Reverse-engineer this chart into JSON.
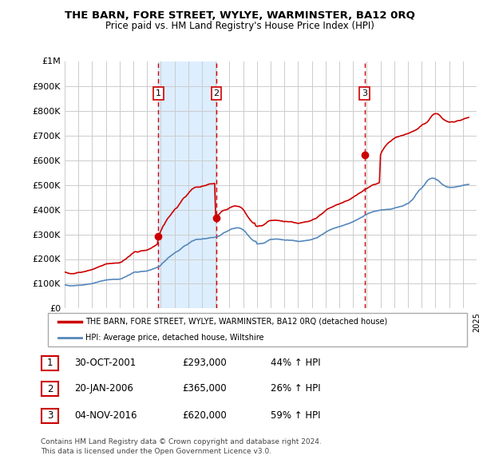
{
  "title": "THE BARN, FORE STREET, WYLYE, WARMINSTER, BA12 0RQ",
  "subtitle": "Price paid vs. HM Land Registry's House Price Index (HPI)",
  "ylim": [
    0,
    1000000
  ],
  "ytop_label": "£1M",
  "sale_dates": [
    2001.83,
    2006.05,
    2016.84
  ],
  "sale_prices": [
    293000,
    365000,
    620000
  ],
  "sale_labels": [
    "1",
    "2",
    "3"
  ],
  "legend_line1": "THE BARN, FORE STREET, WYLYE, WARMINSTER, BA12 0RQ (detached house)",
  "legend_line2": "HPI: Average price, detached house, Wiltshire",
  "table_rows": [
    [
      "1",
      "30-OCT-2001",
      "£293,000",
      "44% ↑ HPI"
    ],
    [
      "2",
      "20-JAN-2006",
      "£365,000",
      "26% ↑ HPI"
    ],
    [
      "3",
      "04-NOV-2016",
      "£620,000",
      "59% ↑ HPI"
    ]
  ],
  "footnote1": "Contains HM Land Registry data © Crown copyright and database right 2024.",
  "footnote2": "This data is licensed under the Open Government Licence v3.0.",
  "property_line_color": "#cc0000",
  "hpi_line_color": "#5588bb",
  "sale_marker_color": "#cc0000",
  "dashed_line_color": "#cc0000",
  "grid_color": "#cccccc",
  "shade_color": "#ddeeff",
  "hpi_data_years": [
    1995.0,
    1995.08,
    1995.17,
    1995.25,
    1995.33,
    1995.42,
    1995.5,
    1995.58,
    1995.67,
    1995.75,
    1995.83,
    1995.92,
    1996.0,
    1996.08,
    1996.17,
    1996.25,
    1996.33,
    1996.42,
    1996.5,
    1996.58,
    1996.67,
    1996.75,
    1996.83,
    1996.92,
    1997.0,
    1997.08,
    1997.17,
    1997.25,
    1997.33,
    1997.42,
    1997.5,
    1997.58,
    1997.67,
    1997.75,
    1997.83,
    1997.92,
    1998.0,
    1998.08,
    1998.17,
    1998.25,
    1998.33,
    1998.42,
    1998.5,
    1998.58,
    1998.67,
    1998.75,
    1998.83,
    1998.92,
    1999.0,
    1999.08,
    1999.17,
    1999.25,
    1999.33,
    1999.42,
    1999.5,
    1999.58,
    1999.67,
    1999.75,
    1999.83,
    1999.92,
    2000.0,
    2000.08,
    2000.17,
    2000.25,
    2000.33,
    2000.42,
    2000.5,
    2000.58,
    2000.67,
    2000.75,
    2000.83,
    2000.92,
    2001.0,
    2001.08,
    2001.17,
    2001.25,
    2001.33,
    2001.42,
    2001.5,
    2001.58,
    2001.67,
    2001.75,
    2001.83,
    2001.92,
    2002.0,
    2002.08,
    2002.17,
    2002.25,
    2002.33,
    2002.42,
    2002.5,
    2002.58,
    2002.67,
    2002.75,
    2002.83,
    2002.92,
    2003.0,
    2003.08,
    2003.17,
    2003.25,
    2003.33,
    2003.42,
    2003.5,
    2003.58,
    2003.67,
    2003.75,
    2003.83,
    2003.92,
    2004.0,
    2004.08,
    2004.17,
    2004.25,
    2004.33,
    2004.42,
    2004.5,
    2004.58,
    2004.67,
    2004.75,
    2004.83,
    2004.92,
    2005.0,
    2005.08,
    2005.17,
    2005.25,
    2005.33,
    2005.42,
    2005.5,
    2005.58,
    2005.67,
    2005.75,
    2005.83,
    2005.92,
    2006.0,
    2006.08,
    2006.17,
    2006.25,
    2006.33,
    2006.42,
    2006.5,
    2006.58,
    2006.67,
    2006.75,
    2006.83,
    2006.92,
    2007.0,
    2007.08,
    2007.17,
    2007.25,
    2007.33,
    2007.42,
    2007.5,
    2007.58,
    2007.67,
    2007.75,
    2007.83,
    2007.92,
    2008.0,
    2008.08,
    2008.17,
    2008.25,
    2008.33,
    2008.42,
    2008.5,
    2008.58,
    2008.67,
    2008.75,
    2008.83,
    2008.92,
    2009.0,
    2009.08,
    2009.17,
    2009.25,
    2009.33,
    2009.42,
    2009.5,
    2009.58,
    2009.67,
    2009.75,
    2009.83,
    2009.92,
    2010.0,
    2010.08,
    2010.17,
    2010.25,
    2010.33,
    2010.42,
    2010.5,
    2010.58,
    2010.67,
    2010.75,
    2010.83,
    2010.92,
    2011.0,
    2011.08,
    2011.17,
    2011.25,
    2011.33,
    2011.42,
    2011.5,
    2011.58,
    2011.67,
    2011.75,
    2011.83,
    2011.92,
    2012.0,
    2012.08,
    2012.17,
    2012.25,
    2012.33,
    2012.42,
    2012.5,
    2012.58,
    2012.67,
    2012.75,
    2012.83,
    2012.92,
    2013.0,
    2013.08,
    2013.17,
    2013.25,
    2013.33,
    2013.42,
    2013.5,
    2013.58,
    2013.67,
    2013.75,
    2013.83,
    2013.92,
    2014.0,
    2014.08,
    2014.17,
    2014.25,
    2014.33,
    2014.42,
    2014.5,
    2014.58,
    2014.67,
    2014.75,
    2014.83,
    2014.92,
    2015.0,
    2015.08,
    2015.17,
    2015.25,
    2015.33,
    2015.42,
    2015.5,
    2015.58,
    2015.67,
    2015.75,
    2015.83,
    2015.92,
    2016.0,
    2016.08,
    2016.17,
    2016.25,
    2016.33,
    2016.42,
    2016.5,
    2016.58,
    2016.67,
    2016.75,
    2016.83,
    2016.92,
    2017.0,
    2017.08,
    2017.17,
    2017.25,
    2017.33,
    2017.42,
    2017.5,
    2017.58,
    2017.67,
    2017.75,
    2017.83,
    2017.92,
    2018.0,
    2018.08,
    2018.17,
    2018.25,
    2018.33,
    2018.42,
    2018.5,
    2018.58,
    2018.67,
    2018.75,
    2018.83,
    2018.92,
    2019.0,
    2019.08,
    2019.17,
    2019.25,
    2019.33,
    2019.42,
    2019.5,
    2019.58,
    2019.67,
    2019.75,
    2019.83,
    2019.92,
    2020.0,
    2020.08,
    2020.17,
    2020.25,
    2020.33,
    2020.42,
    2020.5,
    2020.58,
    2020.67,
    2020.75,
    2020.83,
    2020.92,
    2021.0,
    2021.08,
    2021.17,
    2021.25,
    2021.33,
    2021.42,
    2021.5,
    2021.58,
    2021.67,
    2021.75,
    2021.83,
    2021.92,
    2022.0,
    2022.08,
    2022.17,
    2022.25,
    2022.33,
    2022.42,
    2022.5,
    2022.58,
    2022.67,
    2022.75,
    2022.83,
    2022.92,
    2023.0,
    2023.08,
    2023.17,
    2023.25,
    2023.33,
    2023.42,
    2023.5,
    2023.58,
    2023.67,
    2023.75,
    2023.83,
    2023.92,
    2024.0,
    2024.08,
    2024.17,
    2024.25,
    2024.33,
    2024.42
  ],
  "hpi_data_values": [
    96000,
    95000,
    94000,
    93000,
    92000,
    92000,
    92000,
    92000,
    92000,
    93000,
    93000,
    94000,
    94000,
    94000,
    94000,
    95000,
    95000,
    96000,
    97000,
    97000,
    98000,
    99000,
    99000,
    100000,
    101000,
    102000,
    103000,
    105000,
    106000,
    107000,
    109000,
    110000,
    111000,
    112000,
    113000,
    114000,
    115000,
    116000,
    116000,
    117000,
    117000,
    117000,
    118000,
    118000,
    118000,
    118000,
    118000,
    118000,
    119000,
    120000,
    121000,
    124000,
    126000,
    128000,
    130000,
    133000,
    135000,
    137000,
    140000,
    143000,
    145000,
    147000,
    148000,
    147000,
    147000,
    148000,
    149000,
    150000,
    150000,
    150000,
    151000,
    151000,
    152000,
    153000,
    155000,
    156000,
    158000,
    160000,
    161000,
    163000,
    165000,
    167000,
    168000,
    171000,
    175000,
    180000,
    186000,
    189000,
    193000,
    198000,
    203000,
    207000,
    210000,
    214000,
    217000,
    221000,
    224000,
    228000,
    230000,
    232000,
    235000,
    239000,
    243000,
    247000,
    251000,
    254000,
    256000,
    258000,
    262000,
    265000,
    268000,
    272000,
    274000,
    275000,
    278000,
    279000,
    280000,
    280000,
    280000,
    280000,
    281000,
    282000,
    282000,
    283000,
    283000,
    284000,
    285000,
    286000,
    287000,
    287000,
    287000,
    288000,
    289000,
    290000,
    291000,
    293000,
    296000,
    299000,
    303000,
    306000,
    308000,
    310000,
    312000,
    315000,
    317000,
    320000,
    322000,
    323000,
    324000,
    325000,
    326000,
    326000,
    326000,
    325000,
    323000,
    321000,
    318000,
    314000,
    310000,
    303000,
    298000,
    292000,
    287000,
    282000,
    278000,
    274000,
    272000,
    272000,
    262000,
    261000,
    262000,
    263000,
    263000,
    263000,
    265000,
    266000,
    269000,
    272000,
    275000,
    278000,
    279000,
    280000,
    280000,
    280000,
    281000,
    281000,
    281000,
    280000,
    280000,
    279000,
    278000,
    278000,
    277000,
    276000,
    277000,
    277000,
    276000,
    276000,
    276000,
    276000,
    275000,
    274000,
    273000,
    273000,
    271000,
    271000,
    272000,
    272000,
    273000,
    274000,
    274000,
    275000,
    276000,
    276000,
    277000,
    278000,
    279000,
    281000,
    283000,
    284000,
    285000,
    287000,
    291000,
    293000,
    297000,
    299000,
    302000,
    305000,
    308000,
    311000,
    314000,
    316000,
    318000,
    320000,
    322000,
    324000,
    325000,
    327000,
    328000,
    330000,
    331000,
    332000,
    334000,
    335000,
    337000,
    339000,
    340000,
    342000,
    343000,
    345000,
    347000,
    349000,
    351000,
    353000,
    356000,
    358000,
    360000,
    363000,
    366000,
    368000,
    370000,
    373000,
    376000,
    379000,
    381000,
    383000,
    386000,
    387000,
    389000,
    391000,
    392000,
    393000,
    394000,
    395000,
    396000,
    397000,
    398000,
    399000,
    399000,
    399000,
    400000,
    400000,
    401000,
    401000,
    401000,
    402000,
    403000,
    404000,
    406000,
    407000,
    409000,
    409000,
    411000,
    412000,
    413000,
    414000,
    416000,
    418000,
    421000,
    424000,
    424000,
    427000,
    433000,
    436000,
    440000,
    447000,
    453000,
    461000,
    467000,
    474000,
    479000,
    483000,
    487000,
    492000,
    498000,
    504000,
    511000,
    517000,
    521000,
    524000,
    526000,
    527000,
    527000,
    526000,
    524000,
    521000,
    519000,
    515000,
    511000,
    506000,
    502000,
    499000,
    497000,
    494000,
    492000,
    491000,
    490000,
    490000,
    490000,
    490000,
    490000,
    491000,
    492000,
    493000,
    494000,
    494000,
    495000,
    497000,
    498000,
    499000,
    500000,
    501000,
    501000,
    502000
  ],
  "prop_data_years": [
    1995.0,
    1995.08,
    1995.17,
    1995.25,
    1995.33,
    1995.42,
    1995.5,
    1995.58,
    1995.67,
    1995.75,
    1995.83,
    1995.92,
    1996.0,
    1996.08,
    1996.17,
    1996.25,
    1996.33,
    1996.42,
    1996.5,
    1996.58,
    1996.67,
    1996.75,
    1996.83,
    1996.92,
    1997.0,
    1997.08,
    1997.17,
    1997.25,
    1997.33,
    1997.42,
    1997.5,
    1997.58,
    1997.67,
    1997.75,
    1997.83,
    1997.92,
    1998.0,
    1998.08,
    1998.17,
    1998.25,
    1998.33,
    1998.42,
    1998.5,
    1998.58,
    1998.67,
    1998.75,
    1998.83,
    1998.92,
    1999.0,
    1999.08,
    1999.17,
    1999.25,
    1999.33,
    1999.42,
    1999.5,
    1999.58,
    1999.67,
    1999.75,
    1999.83,
    1999.92,
    2000.0,
    2000.08,
    2000.17,
    2000.25,
    2000.33,
    2000.42,
    2000.5,
    2000.58,
    2000.67,
    2000.75,
    2000.83,
    2000.92,
    2001.0,
    2001.08,
    2001.17,
    2001.25,
    2001.33,
    2001.42,
    2001.5,
    2001.58,
    2001.67,
    2001.75,
    2001.83,
    2002.0,
    2002.08,
    2002.17,
    2002.25,
    2002.33,
    2002.42,
    2002.5,
    2002.58,
    2002.67,
    2002.75,
    2002.83,
    2002.92,
    2003.0,
    2003.08,
    2003.17,
    2003.25,
    2003.33,
    2003.42,
    2003.5,
    2003.58,
    2003.67,
    2003.75,
    2003.83,
    2003.92,
    2004.0,
    2004.08,
    2004.17,
    2004.25,
    2004.33,
    2004.42,
    2004.5,
    2004.58,
    2004.67,
    2004.75,
    2004.83,
    2004.92,
    2005.0,
    2005.08,
    2005.17,
    2005.25,
    2005.33,
    2005.42,
    2005.5,
    2005.58,
    2005.67,
    2005.75,
    2005.83,
    2005.92,
    2006.0,
    2006.05,
    2006.08,
    2006.17,
    2006.25,
    2006.33,
    2006.42,
    2006.5,
    2006.58,
    2006.67,
    2006.75,
    2006.83,
    2006.92,
    2007.0,
    2007.08,
    2007.17,
    2007.25,
    2007.33,
    2007.42,
    2007.5,
    2007.58,
    2007.67,
    2007.75,
    2007.83,
    2007.92,
    2008.0,
    2008.08,
    2008.17,
    2008.25,
    2008.33,
    2008.42,
    2008.5,
    2008.58,
    2008.67,
    2008.75,
    2008.83,
    2008.92,
    2009.0,
    2009.08,
    2009.17,
    2009.25,
    2009.33,
    2009.42,
    2009.5,
    2009.58,
    2009.67,
    2009.75,
    2009.83,
    2009.92,
    2010.0,
    2010.08,
    2010.17,
    2010.25,
    2010.33,
    2010.42,
    2010.5,
    2010.58,
    2010.67,
    2010.75,
    2010.83,
    2010.92,
    2011.0,
    2011.08,
    2011.17,
    2011.25,
    2011.33,
    2011.42,
    2011.5,
    2011.58,
    2011.67,
    2011.75,
    2011.83,
    2011.92,
    2012.0,
    2012.08,
    2012.17,
    2012.25,
    2012.33,
    2012.42,
    2012.5,
    2012.58,
    2012.67,
    2012.75,
    2012.83,
    2012.92,
    2013.0,
    2013.08,
    2013.17,
    2013.25,
    2013.33,
    2013.42,
    2013.5,
    2013.58,
    2013.67,
    2013.75,
    2013.83,
    2013.92,
    2014.0,
    2014.08,
    2014.17,
    2014.25,
    2014.33,
    2014.42,
    2014.5,
    2014.58,
    2014.67,
    2014.75,
    2014.83,
    2014.92,
    2015.0,
    2015.08,
    2015.17,
    2015.25,
    2015.33,
    2015.42,
    2015.5,
    2015.58,
    2015.67,
    2015.75,
    2015.83,
    2015.92,
    2016.0,
    2016.08,
    2016.17,
    2016.25,
    2016.33,
    2016.42,
    2016.5,
    2016.58,
    2016.67,
    2016.75,
    2016.84,
    2017.0,
    2017.08,
    2017.17,
    2017.25,
    2017.33,
    2017.42,
    2017.5,
    2017.58,
    2017.67,
    2017.75,
    2017.83,
    2017.92,
    2018.0,
    2018.08,
    2018.17,
    2018.25,
    2018.33,
    2018.42,
    2018.5,
    2018.58,
    2018.67,
    2018.75,
    2018.83,
    2018.92,
    2019.0,
    2019.08,
    2019.17,
    2019.25,
    2019.33,
    2019.42,
    2019.5,
    2019.58,
    2019.67,
    2019.75,
    2019.83,
    2019.92,
    2020.0,
    2020.08,
    2020.17,
    2020.25,
    2020.33,
    2020.42,
    2020.5,
    2020.58,
    2020.67,
    2020.75,
    2020.83,
    2020.92,
    2021.0,
    2021.08,
    2021.17,
    2021.25,
    2021.33,
    2021.42,
    2021.5,
    2021.58,
    2021.67,
    2021.75,
    2021.83,
    2021.92,
    2022.0,
    2022.08,
    2022.17,
    2022.25,
    2022.33,
    2022.42,
    2022.5,
    2022.58,
    2022.67,
    2022.75,
    2022.83,
    2022.92,
    2023.0,
    2023.08,
    2023.17,
    2023.25,
    2023.33,
    2023.42,
    2023.5,
    2023.58,
    2023.67,
    2023.75,
    2023.83,
    2023.92,
    2024.0,
    2024.08,
    2024.17,
    2024.25,
    2024.33,
    2024.42
  ],
  "prop_data_values": [
    148000,
    146000,
    145000,
    143000,
    142000,
    141000,
    141000,
    141000,
    141000,
    142000,
    143000,
    145000,
    146000,
    146000,
    146000,
    147000,
    148000,
    149000,
    150000,
    151000,
    153000,
    154000,
    155000,
    156000,
    158000,
    159000,
    161000,
    163000,
    165000,
    167000,
    169000,
    171000,
    172000,
    174000,
    176000,
    178000,
    180000,
    181000,
    181000,
    182000,
    182000,
    182000,
    183000,
    183000,
    184000,
    184000,
    184000,
    184000,
    185000,
    187000,
    189000,
    193000,
    196000,
    199000,
    202000,
    207000,
    210000,
    213000,
    218000,
    222000,
    225000,
    229000,
    230000,
    229000,
    228000,
    230000,
    232000,
    233000,
    234000,
    234000,
    235000,
    235000,
    237000,
    238000,
    241000,
    243000,
    245000,
    249000,
    251000,
    254000,
    257000,
    260000,
    293000,
    313000,
    323000,
    334000,
    339000,
    348000,
    357000,
    364000,
    369000,
    375000,
    381000,
    388000,
    393000,
    400000,
    404000,
    407000,
    413000,
    420000,
    427000,
    434000,
    441000,
    447000,
    450000,
    453000,
    460000,
    465000,
    471000,
    476000,
    482000,
    484000,
    488000,
    490000,
    491000,
    491000,
    491000,
    491000,
    492000,
    495000,
    495000,
    497000,
    497000,
    499000,
    501000,
    503000,
    504000,
    504000,
    504000,
    505000,
    506000,
    365000,
    369000,
    374000,
    378000,
    381000,
    386000,
    392000,
    395000,
    397000,
    398000,
    399000,
    401000,
    403000,
    407000,
    409000,
    411000,
    413000,
    414000,
    415000,
    414000,
    413000,
    413000,
    411000,
    409000,
    405000,
    400000,
    395000,
    386000,
    379000,
    372000,
    365000,
    359000,
    354000,
    348000,
    345000,
    346000,
    334000,
    332000,
    333000,
    334000,
    335000,
    334000,
    336000,
    338000,
    342000,
    345000,
    350000,
    353000,
    355000,
    356000,
    356000,
    356000,
    357000,
    357000,
    357000,
    356000,
    356000,
    355000,
    354000,
    354000,
    352000,
    351000,
    352000,
    352000,
    351000,
    351000,
    351000,
    351000,
    350000,
    348000,
    347000,
    347000,
    345000,
    344000,
    345000,
    346000,
    347000,
    348000,
    349000,
    350000,
    351000,
    351000,
    352000,
    354000,
    355000,
    357000,
    360000,
    362000,
    363000,
    365000,
    370000,
    373000,
    378000,
    380000,
    384000,
    387000,
    392000,
    396000,
    400000,
    403000,
    405000,
    407000,
    409000,
    411000,
    413000,
    416000,
    418000,
    420000,
    421000,
    423000,
    425000,
    427000,
    428000,
    431000,
    433000,
    435000,
    436000,
    438000,
    441000,
    443000,
    447000,
    449000,
    453000,
    456000,
    458000,
    462000,
    465000,
    468000,
    470000,
    473000,
    477000,
    481000,
    485000,
    488000,
    491000,
    493000,
    497000,
    499000,
    501000,
    502000,
    503000,
    505000,
    507000,
    509000,
    620000,
    633000,
    641000,
    648000,
    655000,
    661000,
    666000,
    670000,
    674000,
    677000,
    681000,
    685000,
    688000,
    691000,
    693000,
    694000,
    696000,
    697000,
    699000,
    700000,
    701000,
    703000,
    705000,
    706000,
    708000,
    709000,
    712000,
    714000,
    716000,
    718000,
    720000,
    722000,
    725000,
    728000,
    733000,
    737000,
    741000,
    745000,
    746000,
    748000,
    751000,
    755000,
    760000,
    767000,
    774000,
    780000,
    784000,
    787000,
    788000,
    788000,
    787000,
    784000,
    780000,
    774000,
    769000,
    765000,
    762000,
    759000,
    757000,
    755000,
    754000,
    754000,
    755000,
    755000,
    754000,
    755000,
    757000,
    759000,
    760000,
    760000,
    761000,
    763000,
    765000,
    767000,
    769000,
    770000,
    771000,
    773000
  ]
}
